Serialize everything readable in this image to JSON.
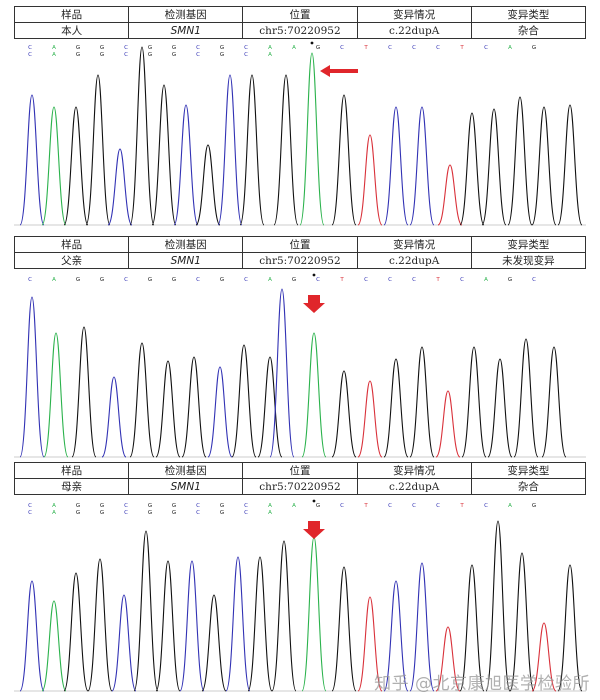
{
  "table_headers": [
    "样品",
    "检测基因",
    "位置",
    "变异情况",
    "变异类型"
  ],
  "panels": [
    {
      "sample": "本人",
      "gene": "SMN1",
      "location": "chr5:70220952",
      "variant": "c.22dupA",
      "variant_type": "杂合",
      "arrow_direction": "left",
      "base_calls_top": [
        "C",
        "A",
        "G",
        "G",
        "C",
        "G",
        "G",
        "C",
        "G",
        "C",
        "A",
        "A",
        "G",
        "C",
        "T",
        "C",
        "C",
        "C",
        "T",
        "C",
        "A",
        "G"
      ],
      "base_calls_bottom": [
        "C",
        "A",
        "G",
        "G",
        "C",
        "G",
        "G",
        "C",
        "G",
        "C",
        "A"
      ]
    },
    {
      "sample": "父亲",
      "gene": "SMN1",
      "location": "chr5:70220952",
      "variant": "c.22dupA",
      "variant_type": "未发现变异",
      "arrow_direction": "down",
      "base_calls_top": [
        "C",
        "A",
        "G",
        "G",
        "C",
        "G",
        "G",
        "C",
        "G",
        "C",
        "A",
        "G",
        "C",
        "T",
        "C",
        "C",
        "C",
        "T",
        "C",
        "A",
        "G",
        "C"
      ],
      "base_calls_bottom": []
    },
    {
      "sample": "母亲",
      "gene": "SMN1",
      "location": "chr5:70220952",
      "variant": "c.22dupA",
      "variant_type": "杂合",
      "arrow_direction": "down",
      "base_calls_top": [
        "C",
        "A",
        "G",
        "G",
        "C",
        "G",
        "G",
        "C",
        "G",
        "C",
        "A",
        "A",
        "G",
        "C",
        "T",
        "C",
        "C",
        "C",
        "T",
        "C",
        "A",
        "G"
      ],
      "base_calls_bottom": [
        "C",
        "A",
        "G",
        "G",
        "C",
        "G",
        "G",
        "C",
        "G",
        "C",
        "A"
      ]
    }
  ],
  "base_colors": {
    "A": "#2bb24c",
    "C": "#3232b4",
    "G": "#111111",
    "T": "#d9313a"
  },
  "arrow_color": "#e0262b",
  "watermark": "知乎 @北京康旭医学检验所"
}
